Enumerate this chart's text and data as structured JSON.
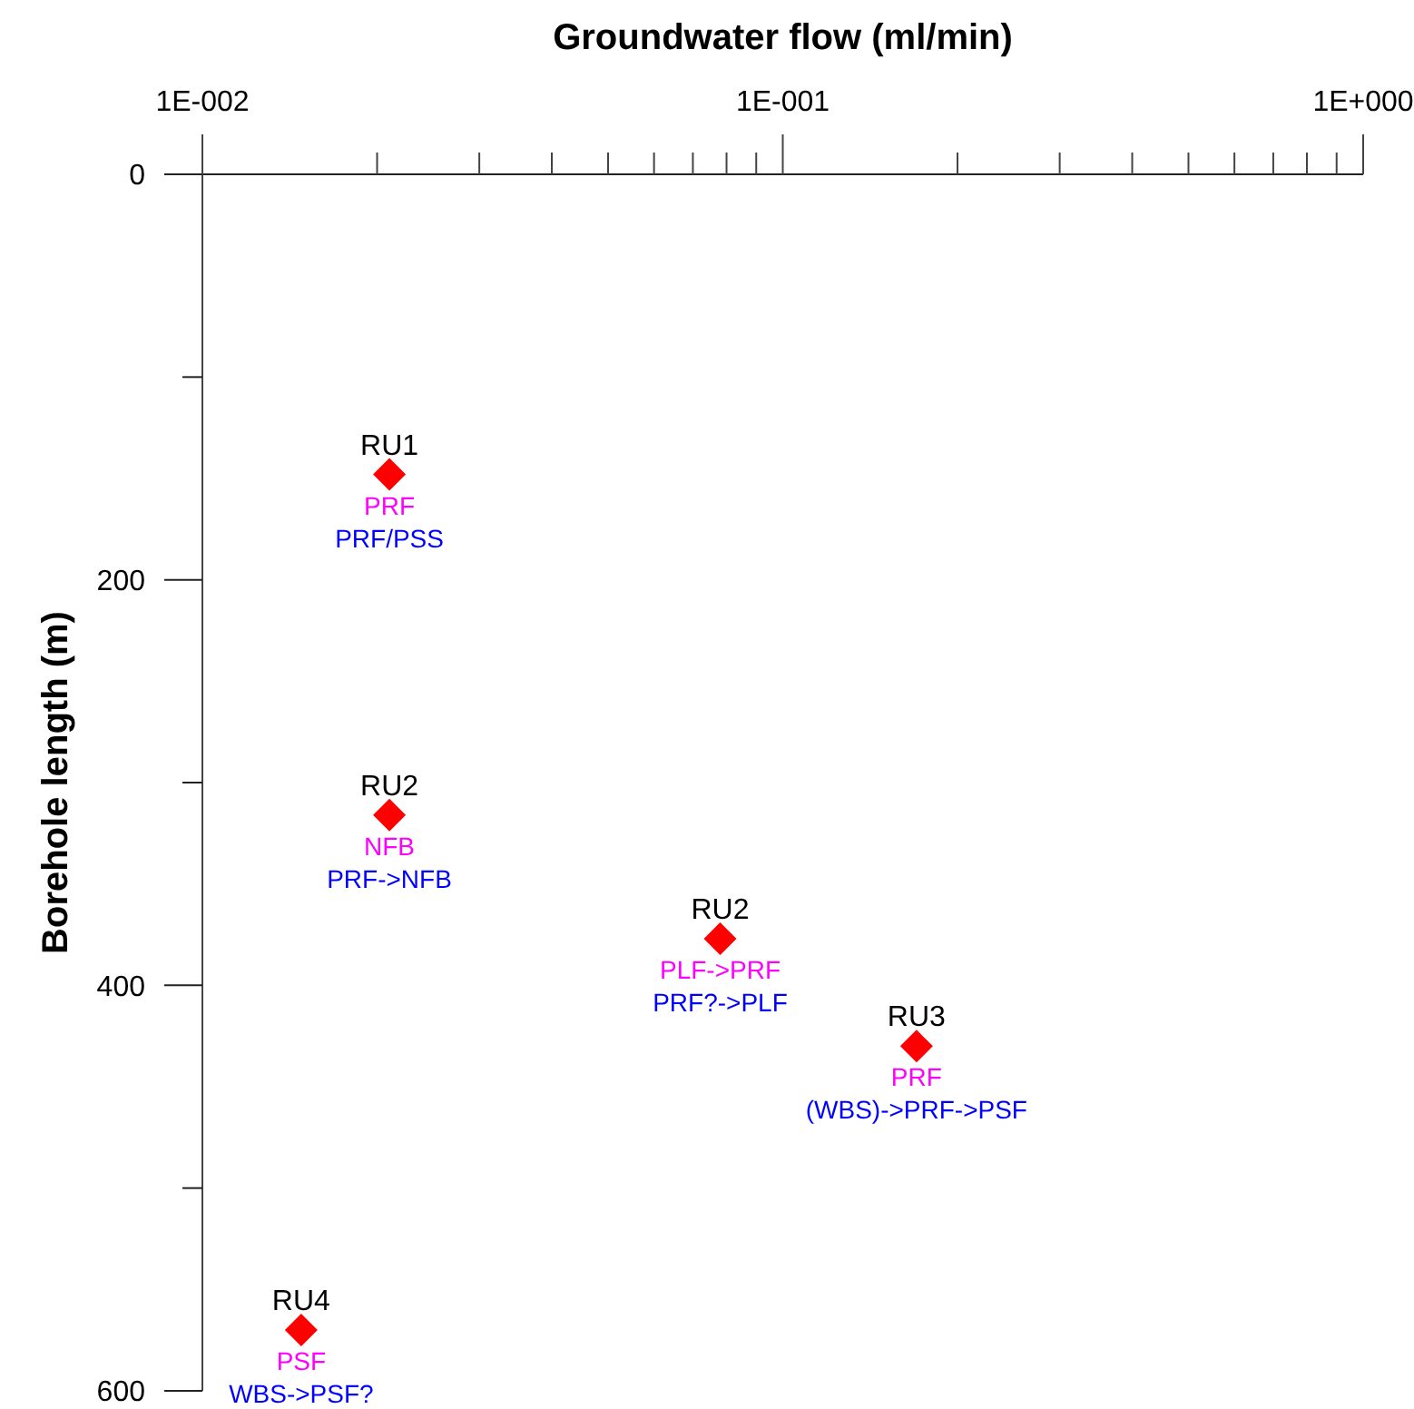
{
  "chart_data": {
    "type": "scatter",
    "xlabel": "Groundwater flow (ml/min)",
    "ylabel": "Borehole length (m)",
    "x": [
      0.021,
      0.021,
      0.078,
      0.17,
      0.0148
    ],
    "values": [
      148,
      316,
      377,
      430,
      570
    ],
    "value_labels": [
      "RU1",
      "RU2",
      "RU2",
      "RU3",
      "RU4"
    ],
    "color": "#ff0000",
    "marker": "diamond",
    "log": "x",
    "xlim": [
      0.01,
      1
    ],
    "ylim": [
      600,
      0
    ],
    "xticks": [
      {
        "value": 0.01,
        "label": "1E-002"
      },
      {
        "value": 0.02,
        "label": null
      },
      {
        "value": 0.03,
        "label": null
      },
      {
        "value": 0.04,
        "label": null
      },
      {
        "value": 0.05,
        "label": null
      },
      {
        "value": 0.06,
        "label": null
      },
      {
        "value": 0.07,
        "label": null
      },
      {
        "value": 0.08,
        "label": null
      },
      {
        "value": 0.09,
        "label": null
      },
      {
        "value": 0.1,
        "label": "1E-001"
      },
      {
        "value": 0.2,
        "label": null
      },
      {
        "value": 0.3,
        "label": null
      },
      {
        "value": 0.4,
        "label": null
      },
      {
        "value": 0.5,
        "label": null
      },
      {
        "value": 0.6,
        "label": null
      },
      {
        "value": 0.7,
        "label": null
      },
      {
        "value": 0.8,
        "label": null
      },
      {
        "value": 0.9,
        "label": null
      },
      {
        "value": 1,
        "label": "1E+000"
      }
    ],
    "yticks": [
      0,
      {
        "value": 100,
        "label": null
      },
      200,
      {
        "value": 300,
        "label": null
      },
      400,
      {
        "value": 500,
        "label": null
      },
      600
    ],
    "annotations": [
      {
        "text": "PRF",
        "x": 0.021,
        "y": 148
      },
      {
        "text": "PRF/PSS",
        "x": 0.021,
        "y": 148
      },
      {
        "text": "NFB",
        "x": 0.021,
        "y": 316
      },
      {
        "text": "PRF->NFB",
        "x": 0.021,
        "y": 316
      },
      {
        "text": "PLF->PRF",
        "x": 0.078,
        "y": 377
      },
      {
        "text": "PRF?->PLF",
        "x": 0.078,
        "y": 377
      },
      {
        "text": "PRF",
        "x": 0.17,
        "y": 430
      },
      {
        "text": "(WBS)->PRF->PSF",
        "x": 0.17,
        "y": 430
      },
      {
        "text": "PSF",
        "x": 0.0148,
        "y": 570
      },
      {
        "text": "WBS->PSF?",
        "x": 0.0148,
        "y": 570
      }
    ]
  }
}
